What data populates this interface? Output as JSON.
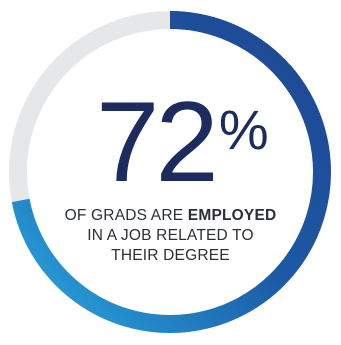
{
  "chart_data": {
    "type": "pie",
    "values": [
      72,
      28
    ],
    "colors": {
      "progress_start": "#1f4590",
      "progress_end": "#29a9e0",
      "track": "#e6e7e9"
    }
  },
  "stat": {
    "value": "72",
    "unit": "%"
  },
  "caption": {
    "line1_prefix": "OF GRADS ARE ",
    "line1_bold": "EMPLOYED",
    "line2": "IN A JOB RELATED TO",
    "line3": "THEIR DEGREE"
  }
}
